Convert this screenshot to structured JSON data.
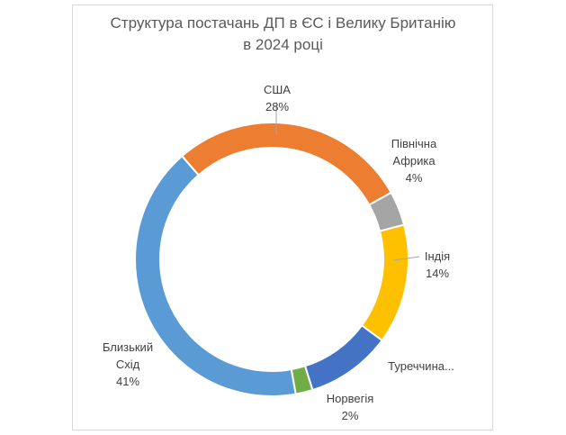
{
  "chart_data": {
    "type": "pie",
    "title_lines": [
      "Структура постачань ДП в ЄС і Велику Британію",
      "в 2024 році"
    ],
    "slices": [
      {
        "label_lines": [
          "США",
          "28%"
        ],
        "value": 28,
        "color": "#ED7D31"
      },
      {
        "label_lines": [
          "Північна",
          "Африка",
          "4%"
        ],
        "value": 4,
        "color": "#A5A5A5"
      },
      {
        "label_lines": [
          "Індія",
          "14%"
        ],
        "value": 14,
        "color": "#FFC000"
      },
      {
        "label_lines": [
          "Туреччина..."
        ],
        "value": 10,
        "color": "#4472C4"
      },
      {
        "label_lines": [
          "Норвегія",
          "2%"
        ],
        "value": 2,
        "color": "#70AD47"
      },
      {
        "label_lines": [
          "Близький",
          "Схід",
          "41%"
        ],
        "value": 41,
        "color": "#5B9BD5"
      }
    ],
    "start_angle_deg": -41,
    "legend": "none"
  }
}
